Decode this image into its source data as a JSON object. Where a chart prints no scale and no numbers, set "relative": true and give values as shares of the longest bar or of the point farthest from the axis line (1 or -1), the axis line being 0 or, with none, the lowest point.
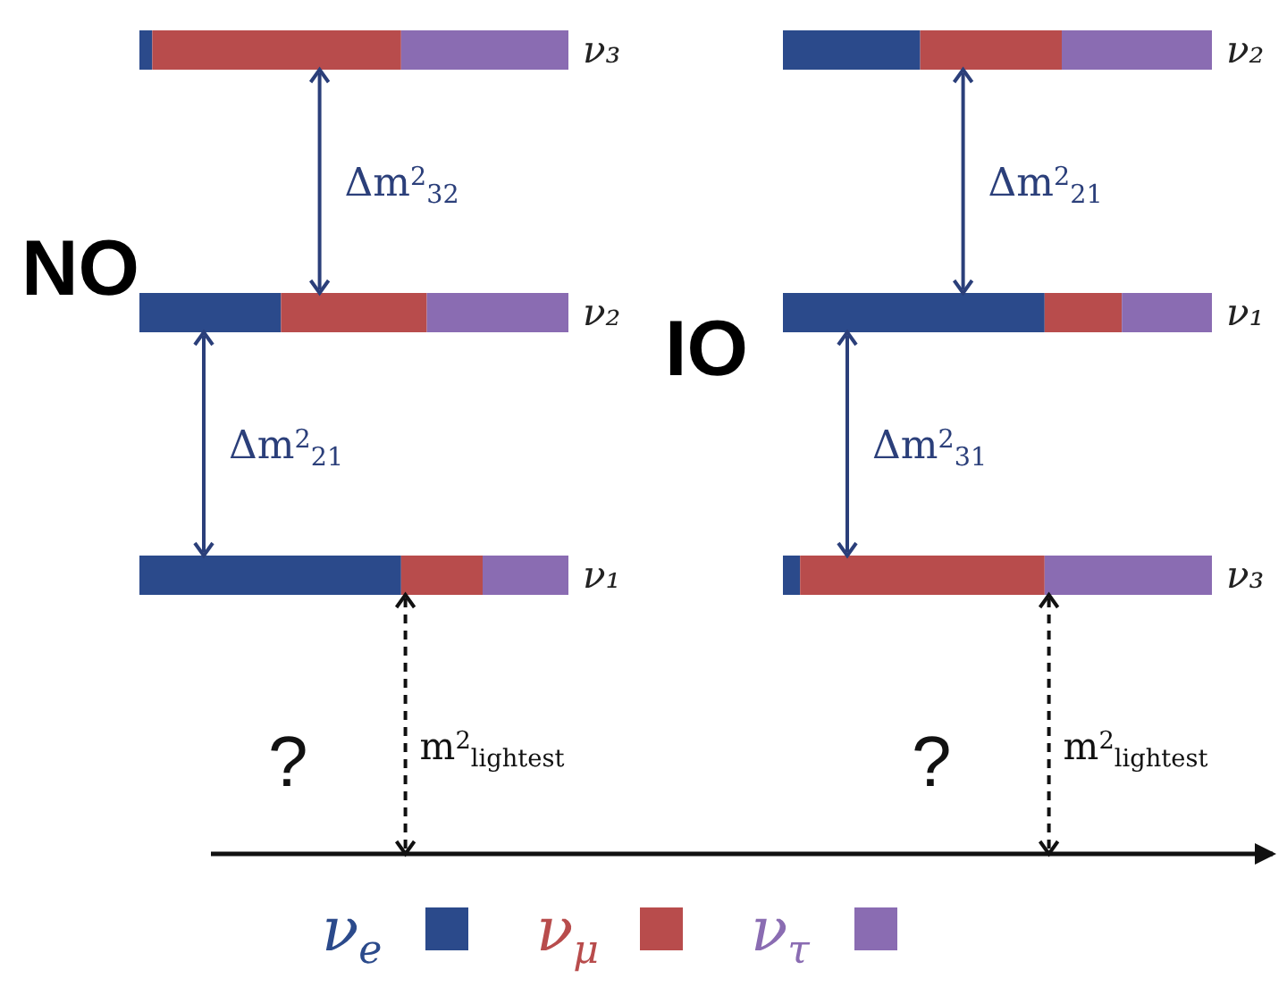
{
  "chart_data": [
    {
      "type": "bar",
      "title": "NO",
      "orientation": "horizontal",
      "stacked": true,
      "relative": true,
      "legend": "bottom",
      "categories": [
        "ν₃",
        "ν₂",
        "ν₁"
      ],
      "series": [
        {
          "name": "ν$_{e}$",
          "color": "#2b4a8b",
          "values": [
            0.03,
            0.33,
            0.61
          ]
        },
        {
          "name": "ν$_{μ}$",
          "color": "#b84c4c",
          "values": [
            0.58,
            0.34,
            0.19
          ]
        },
        {
          "name": "ν$_{τ}$",
          "color": "#8a6cb2",
          "values": [
            0.39,
            0.33,
            0.2
          ]
        }
      ],
      "annotations": [
        "Δm$^{2}$$_{32}$",
        "Δm$^{2}$$_{21}$",
        "m$^{2}$$_{lightest}$",
        "?"
      ]
    },
    {
      "type": "bar",
      "title": "IO",
      "orientation": "horizontal",
      "stacked": true,
      "relative": true,
      "categories": [
        "ν₂",
        "ν₁",
        "ν₃"
      ],
      "series": [
        {
          "color": "#2b4a8b",
          "values": [
            0.32,
            0.61,
            0.04
          ]
        },
        {
          "color": "#b84c4c",
          "values": [
            0.33,
            0.18,
            0.57
          ]
        },
        {
          "color": "#8a6cb2",
          "values": [
            0.35,
            0.21,
            0.39
          ]
        }
      ],
      "annotations": [
        "Δm$^{2}$$_{21}$",
        "Δm$^{2}$$_{31}$",
        "m$^{2}$$_{lightest}$",
        "?"
      ]
    }
  ]
}
